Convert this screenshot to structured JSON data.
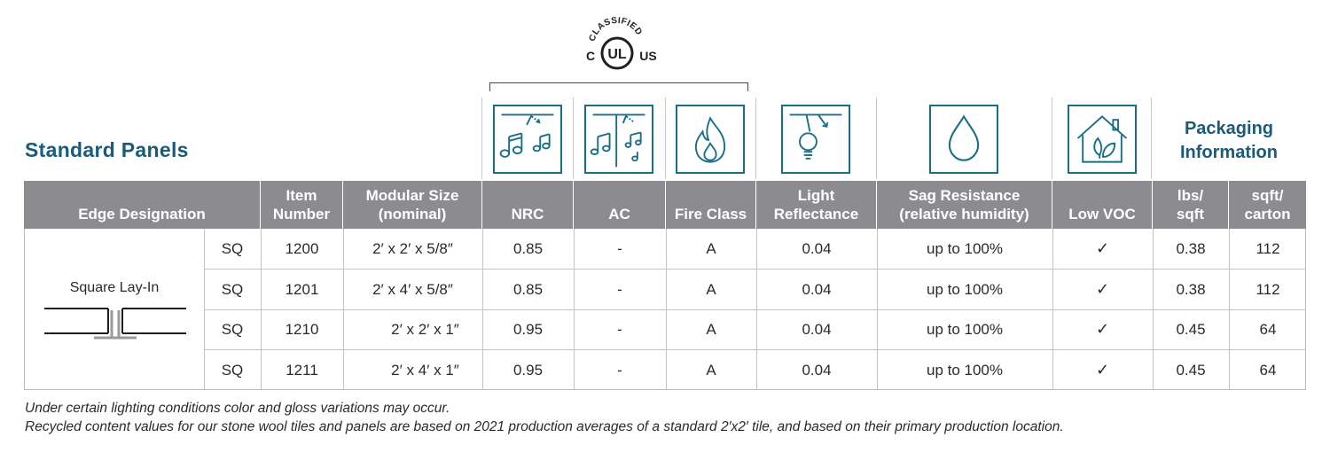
{
  "section_title": "Standard Panels",
  "ul_mark": {
    "top_text": "CLASSIFIED",
    "left_text": "C",
    "center_text": "UL",
    "right_text": "US"
  },
  "icons": [
    "nrc-music-icon",
    "ac-music-wall-icon",
    "fire-icon",
    "light-reflectance-icon",
    "water-drop-icon",
    "house-leaf-icon"
  ],
  "packaging_title_1": "Packaging",
  "packaging_title_2": "Information",
  "headers": {
    "edge": "Edge Designation",
    "item_1": "Item",
    "item_2": "Number",
    "size_1": "Modular Size",
    "size_2": "(nominal)",
    "nrc": "NRC",
    "ac": "AC",
    "fire": "Fire Class",
    "light_1": "Light",
    "light_2": "Reflectance",
    "sag_1": "Sag Resistance",
    "sag_2": "(relative humidity)",
    "voc": "Low VOC",
    "lbs_1": "lbs/",
    "lbs_2": "sqft",
    "sqft_1": "sqft/",
    "sqft_2": "carton"
  },
  "edge_label": "Square Lay-In",
  "rows": [
    {
      "edge": "SQ",
      "item": "1200",
      "size": "2′ x 2′ x 5/8″",
      "nrc": "0.85",
      "ac": "-",
      "fire": "A",
      "light": "0.04",
      "sag": "up to 100%",
      "voc": "✓",
      "lbs": "0.38",
      "sqft": "112"
    },
    {
      "edge": "SQ",
      "item": "1201",
      "size": "2′ x 4′ x 5/8″",
      "nrc": "0.85",
      "ac": "-",
      "fire": "A",
      "light": "0.04",
      "sag": "up to 100%",
      "voc": "✓",
      "lbs": "0.38",
      "sqft": "112"
    },
    {
      "edge": "SQ",
      "item": "1210",
      "size": "2′ x 2′ x 1″",
      "nrc": "0.95",
      "ac": "-",
      "fire": "A",
      "light": "0.04",
      "sag": "up to 100%",
      "voc": "✓",
      "lbs": "0.45",
      "sqft": "64"
    },
    {
      "edge": "SQ",
      "item": "1211",
      "size": "2′ x 4′ x 1″",
      "nrc": "0.95",
      "ac": "-",
      "fire": "A",
      "light": "0.04",
      "sag": "up to 100%",
      "voc": "✓",
      "lbs": "0.45",
      "sqft": "64"
    }
  ],
  "footnotes": [
    "Under certain lighting conditions color and gloss variations may occur.",
    "Recycled content values for our stone wool tiles and panels are based on 2021 production averages of a standard 2′x2′ tile, and based on their primary production location."
  ],
  "colors": {
    "brand": "#1a5a7a",
    "icon_stroke": "#1a6e86",
    "header_bg": "#8c8c90"
  }
}
